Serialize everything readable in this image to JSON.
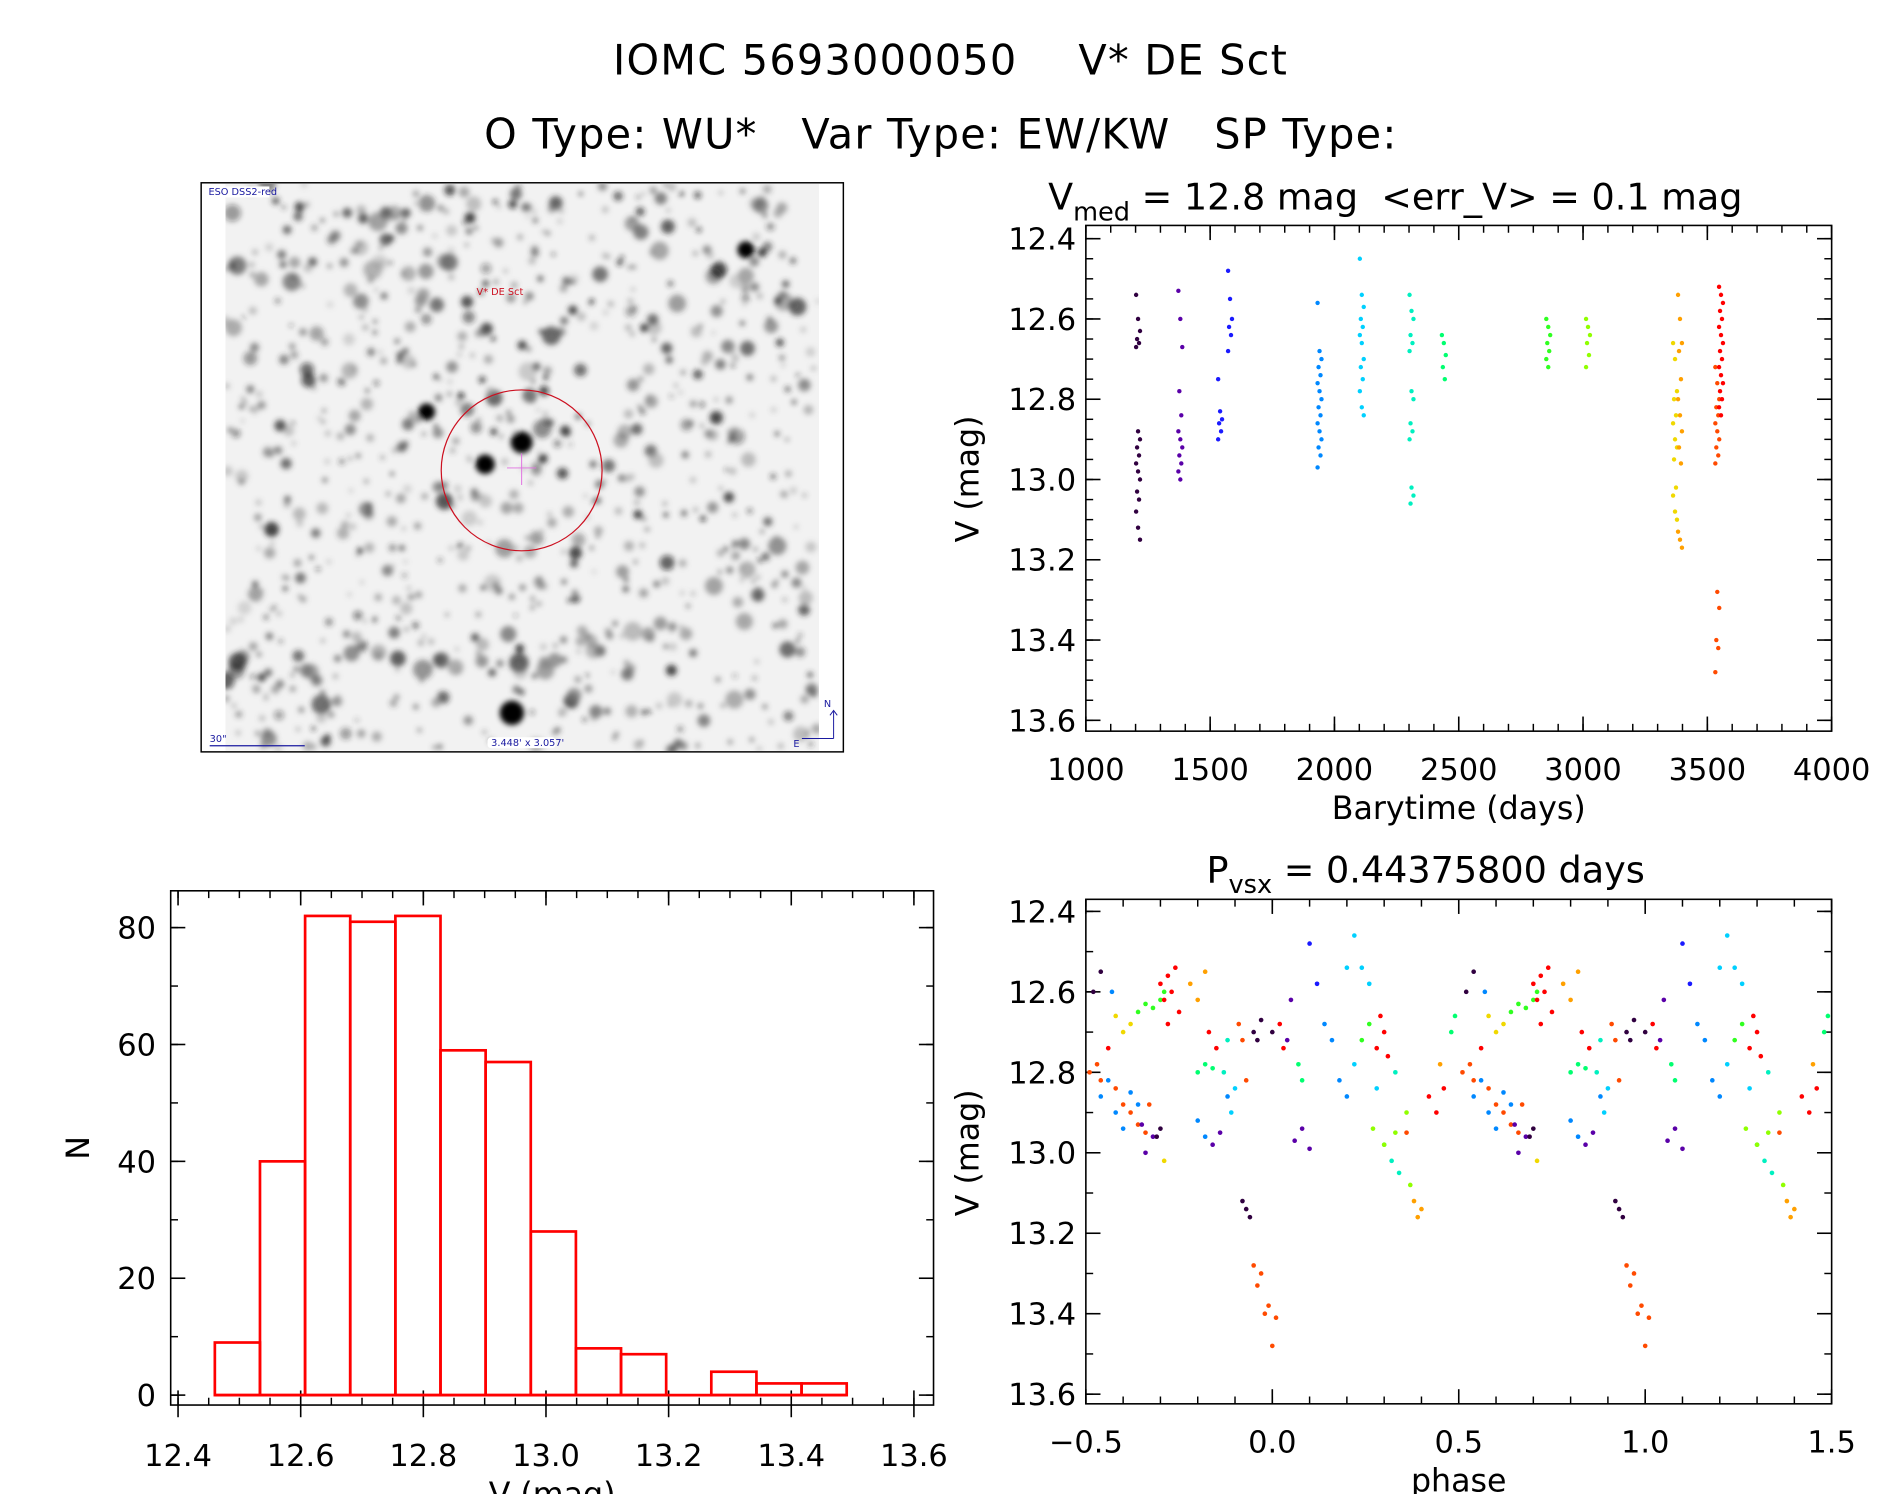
{
  "header": {
    "title_id": "IOMC 5693000050",
    "title_name": "V* DE Sct",
    "o_type": "O Type: WU*",
    "var_type": "Var Type: EW/KW",
    "sp_type": "SP Type:"
  },
  "finder": {
    "survey": "ESO DSS2-red",
    "target_label": "V* DE Sct",
    "scale_bar": "30\"",
    "field_size": "3.448' x 3.057'",
    "north": "N",
    "east": "E",
    "colors": {
      "frame": "#000000",
      "circle": "#cc1020",
      "label": "#cc1020",
      "annot": "#1a1aa0"
    }
  },
  "stats": {
    "v_sym": "V",
    "v_sub": "med",
    "v_text": " = 12.8 mag  <err_V> = 0.1 mag"
  },
  "period": {
    "p_sym": "P",
    "p_sub": "vsx",
    "p_text": " = 0.44375800 days"
  },
  "palette": [
    "#300040",
    "#5a00a8",
    "#1a1aff",
    "#0088ff",
    "#00d0ff",
    "#00f0c0",
    "#00ff70",
    "#30ff20",
    "#90ff00",
    "#f0d800",
    "#ffa000",
    "#ff4a00",
    "#ff0000"
  ],
  "chart_data": [
    {
      "type": "scatter",
      "id": "light-curve",
      "title": "",
      "xlabel": "Barytime (days)",
      "ylabel": "V (mag)",
      "xlim": [
        1000,
        4000
      ],
      "ylim": [
        12.367,
        13.627
      ],
      "y_inverted": true,
      "x_ticks": [
        "1000",
        "1500",
        "2000",
        "2500",
        "3000",
        "3500",
        "4000"
      ],
      "y_ticks": [
        "12.4",
        "12.6",
        "12.8",
        "13.0",
        "13.2",
        "13.4",
        "13.6"
      ],
      "seasons": [
        {
          "t": 1210,
          "c": 0,
          "mags": [
            12.54,
            12.6,
            12.63,
            12.65,
            12.66,
            12.67,
            12.88,
            12.9,
            12.92,
            12.94,
            12.96,
            12.98,
            13.0,
            13.03,
            13.05,
            13.08,
            13.12,
            13.15
          ]
        },
        {
          "t": 1380,
          "c": 1,
          "mags": [
            12.53,
            12.6,
            12.67,
            12.78,
            12.84,
            12.88,
            12.9,
            12.92,
            12.94,
            12.96,
            12.98,
            13.0
          ]
        },
        {
          "t": 1540,
          "c": 2,
          "mags": [
            12.75,
            12.83,
            12.85,
            12.86,
            12.88,
            12.9
          ]
        },
        {
          "t": 1580,
          "c": 2,
          "mags": [
            12.48,
            12.55,
            12.6,
            12.62,
            12.64,
            12.68
          ]
        },
        {
          "t": 1940,
          "c": 3,
          "mags": [
            12.56,
            12.68,
            12.7,
            12.72,
            12.74,
            12.76,
            12.78,
            12.8,
            12.82,
            12.84,
            12.86,
            12.88,
            12.9,
            12.92,
            12.94,
            12.97
          ]
        },
        {
          "t": 2110,
          "c": 4,
          "mags": [
            12.45,
            12.54,
            12.57,
            12.6,
            12.62,
            12.64,
            12.66,
            12.7,
            12.72,
            12.75,
            12.78,
            12.82,
            12.84
          ]
        },
        {
          "t": 2310,
          "c": 5,
          "mags": [
            12.54,
            12.58,
            12.6,
            12.64,
            12.66,
            12.68,
            12.78,
            12.8,
            12.86,
            12.88,
            12.9,
            13.02,
            13.04,
            13.06
          ]
        },
        {
          "t": 2440,
          "c": 6,
          "mags": [
            12.64,
            12.66,
            12.69,
            12.72,
            12.75
          ]
        },
        {
          "t": 2860,
          "c": 7,
          "mags": [
            12.6,
            12.62,
            12.64,
            12.66,
            12.68,
            12.7,
            12.72
          ]
        },
        {
          "t": 3020,
          "c": 8,
          "mags": [
            12.6,
            12.62,
            12.64,
            12.66,
            12.69,
            12.72
          ]
        },
        {
          "t": 3370,
          "c": 9,
          "mags": [
            12.66,
            12.7,
            12.78,
            12.8,
            12.84,
            12.86,
            12.9,
            12.92,
            12.95,
            13.02,
            13.04,
            13.08,
            13.1
          ]
        },
        {
          "t": 3390,
          "c": 10,
          "mags": [
            12.54,
            12.6,
            12.66,
            12.68,
            12.75,
            12.8,
            12.84,
            12.88,
            12.92,
            12.96,
            13.13,
            13.15,
            13.17
          ]
        },
        {
          "t": 3540,
          "c": 11,
          "mags": [
            12.72,
            12.76,
            12.8,
            12.82,
            12.84,
            12.86,
            12.88,
            12.9,
            12.92,
            12.94,
            12.96,
            13.28,
            13.32,
            13.4,
            13.42,
            13.48
          ]
        },
        {
          "t": 3555,
          "c": 12,
          "mags": [
            12.52,
            12.54,
            12.56,
            12.58,
            12.6,
            12.62,
            12.64,
            12.66,
            12.68,
            12.7,
            12.72,
            12.74,
            12.76,
            12.78,
            12.8,
            12.82,
            12.84
          ]
        }
      ]
    },
    {
      "type": "scatter",
      "id": "phase-curve",
      "xlabel": "phase",
      "ylabel": "V (mag)",
      "xlim": [
        -0.5,
        1.5
      ],
      "ylim": [
        12.37,
        13.624
      ],
      "y_inverted": true,
      "repeat_cycle": true,
      "x_ticks": [
        "−0.5",
        "0.0",
        "0.5",
        "1.0",
        "1.5"
      ],
      "y_ticks": [
        "12.4",
        "12.6",
        "12.8",
        "13.0",
        "13.2",
        "13.4",
        "13.6"
      ],
      "points": [
        [
          -0.49,
          12.8,
          11
        ],
        [
          -0.47,
          12.78,
          11
        ],
        [
          -0.46,
          12.82,
          11
        ],
        [
          -0.44,
          12.74,
          12
        ],
        [
          -0.42,
          12.84,
          11
        ],
        [
          -0.4,
          12.88,
          11
        ],
        [
          -0.38,
          12.9,
          11
        ],
        [
          -0.36,
          12.93,
          11
        ],
        [
          -0.34,
          12.95,
          11
        ],
        [
          -0.33,
          12.88,
          11
        ],
        [
          -0.48,
          12.6,
          0
        ],
        [
          -0.46,
          12.55,
          0
        ],
        [
          -0.42,
          12.66,
          9
        ],
        [
          -0.4,
          12.7,
          9
        ],
        [
          -0.38,
          12.68,
          9
        ],
        [
          -0.36,
          12.65,
          7
        ],
        [
          -0.34,
          12.63,
          7
        ],
        [
          -0.32,
          12.64,
          7
        ],
        [
          -0.3,
          12.62,
          7
        ],
        [
          -0.29,
          12.6,
          7
        ],
        [
          -0.46,
          12.86,
          3
        ],
        [
          -0.44,
          12.82,
          3
        ],
        [
          -0.42,
          12.9,
          3
        ],
        [
          -0.4,
          12.94,
          3
        ],
        [
          -0.38,
          12.85,
          3
        ],
        [
          -0.36,
          12.88,
          3
        ],
        [
          -0.43,
          12.6,
          3
        ],
        [
          -0.35,
          12.93,
          1
        ],
        [
          -0.34,
          13.0,
          1
        ],
        [
          -0.32,
          12.96,
          1
        ],
        [
          -0.3,
          12.58,
          12
        ],
        [
          -0.29,
          12.62,
          12
        ],
        [
          -0.28,
          12.56,
          12
        ],
        [
          -0.27,
          12.6,
          12
        ],
        [
          -0.26,
          12.54,
          12
        ],
        [
          -0.25,
          12.65,
          12
        ],
        [
          -0.28,
          12.68,
          12
        ],
        [
          -0.31,
          12.96,
          0
        ],
        [
          -0.3,
          12.94,
          0
        ],
        [
          -0.29,
          13.02,
          9
        ],
        [
          -0.22,
          12.58,
          10
        ],
        [
          -0.2,
          12.62,
          10
        ],
        [
          -0.18,
          12.55,
          10
        ],
        [
          -0.17,
          12.7,
          12
        ],
        [
          -0.15,
          12.74,
          12
        ],
        [
          -0.2,
          12.8,
          6
        ],
        [
          -0.18,
          12.78,
          6
        ],
        [
          -0.16,
          12.79,
          6
        ],
        [
          -0.13,
          12.8,
          5
        ],
        [
          -0.12,
          12.72,
          5
        ],
        [
          -0.2,
          12.92,
          3
        ],
        [
          -0.18,
          12.96,
          3
        ],
        [
          -0.16,
          12.98,
          1
        ],
        [
          -0.14,
          12.95,
          1
        ],
        [
          -0.12,
          12.86,
          3
        ],
        [
          -0.11,
          12.9,
          4
        ],
        [
          -0.1,
          12.84,
          4
        ],
        [
          -0.09,
          12.68,
          11
        ],
        [
          -0.08,
          12.72,
          11
        ],
        [
          -0.07,
          12.82,
          11
        ],
        [
          -0.08,
          13.12,
          0
        ],
        [
          -0.07,
          13.14,
          0
        ],
        [
          -0.06,
          13.16,
          0
        ],
        [
          -0.05,
          13.28,
          11
        ],
        [
          -0.04,
          13.33,
          11
        ],
        [
          -0.03,
          13.3,
          11
        ],
        [
          -0.02,
          13.4,
          11
        ],
        [
          -0.01,
          13.38,
          11
        ],
        [
          0.0,
          13.48,
          11
        ],
        [
          0.01,
          13.41,
          11
        ],
        [
          -0.05,
          12.7,
          0
        ],
        [
          -0.04,
          12.72,
          0
        ],
        [
          -0.03,
          12.67,
          0
        ],
        [
          0.0,
          12.7,
          0
        ],
        [
          0.02,
          12.68,
          12
        ],
        [
          0.03,
          12.74,
          12
        ],
        [
          0.04,
          12.72,
          1
        ],
        [
          0.05,
          12.62,
          1
        ],
        [
          0.07,
          12.78,
          6
        ],
        [
          0.08,
          12.82,
          6
        ],
        [
          0.06,
          12.97,
          1
        ],
        [
          0.08,
          12.94,
          1
        ],
        [
          0.1,
          12.99,
          1
        ],
        [
          0.1,
          12.48,
          2
        ],
        [
          0.12,
          12.58,
          2
        ],
        [
          0.14,
          12.68,
          3
        ],
        [
          0.16,
          12.72,
          3
        ],
        [
          0.18,
          12.82,
          3
        ],
        [
          0.2,
          12.86,
          3
        ],
        [
          0.22,
          12.78,
          4
        ],
        [
          0.2,
          12.54,
          4
        ],
        [
          0.22,
          12.46,
          4
        ],
        [
          0.24,
          12.54,
          4
        ],
        [
          0.26,
          12.58,
          4
        ],
        [
          0.28,
          12.84,
          4
        ],
        [
          0.3,
          12.98,
          5
        ],
        [
          0.32,
          13.02,
          5
        ],
        [
          0.34,
          13.05,
          5
        ],
        [
          0.24,
          12.72,
          7
        ],
        [
          0.26,
          12.68,
          7
        ],
        [
          0.28,
          12.74,
          12
        ],
        [
          0.29,
          12.66,
          12
        ],
        [
          0.3,
          12.7,
          12
        ],
        [
          0.31,
          12.76,
          12
        ],
        [
          0.27,
          12.94,
          8
        ],
        [
          0.3,
          12.98,
          8
        ],
        [
          0.33,
          12.95,
          8
        ],
        [
          0.36,
          12.9,
          8
        ],
        [
          0.37,
          13.08,
          8
        ],
        [
          0.38,
          13.12,
          10
        ],
        [
          0.39,
          13.16,
          10
        ],
        [
          0.4,
          13.14,
          10
        ],
        [
          0.42,
          12.86,
          12
        ],
        [
          0.44,
          12.9,
          12
        ],
        [
          0.46,
          12.84,
          12
        ],
        [
          0.48,
          12.7,
          6
        ],
        [
          0.49,
          12.66,
          6
        ],
        [
          0.36,
          12.95,
          11
        ],
        [
          0.33,
          12.8,
          5
        ],
        [
          0.45,
          12.78,
          10
        ]
      ]
    },
    {
      "type": "bar",
      "id": "histogram",
      "xlabel": "V (mag)",
      "ylabel": "N",
      "xlim": [
        12.388,
        13.632
      ],
      "ylim": [
        -1.7,
        86.3
      ],
      "x_ticks": [
        "12.4",
        "12.6",
        "12.8",
        "13.0",
        "13.2",
        "13.4",
        "13.6"
      ],
      "y_ticks": [
        "0",
        "20",
        "40",
        "60",
        "80"
      ],
      "bin_start": 12.46,
      "bin_width": 0.0736,
      "counts": [
        9,
        40,
        82,
        81,
        82,
        59,
        57,
        28,
        8,
        7,
        0,
        4,
        2,
        2
      ],
      "color": "#ff0000"
    }
  ]
}
